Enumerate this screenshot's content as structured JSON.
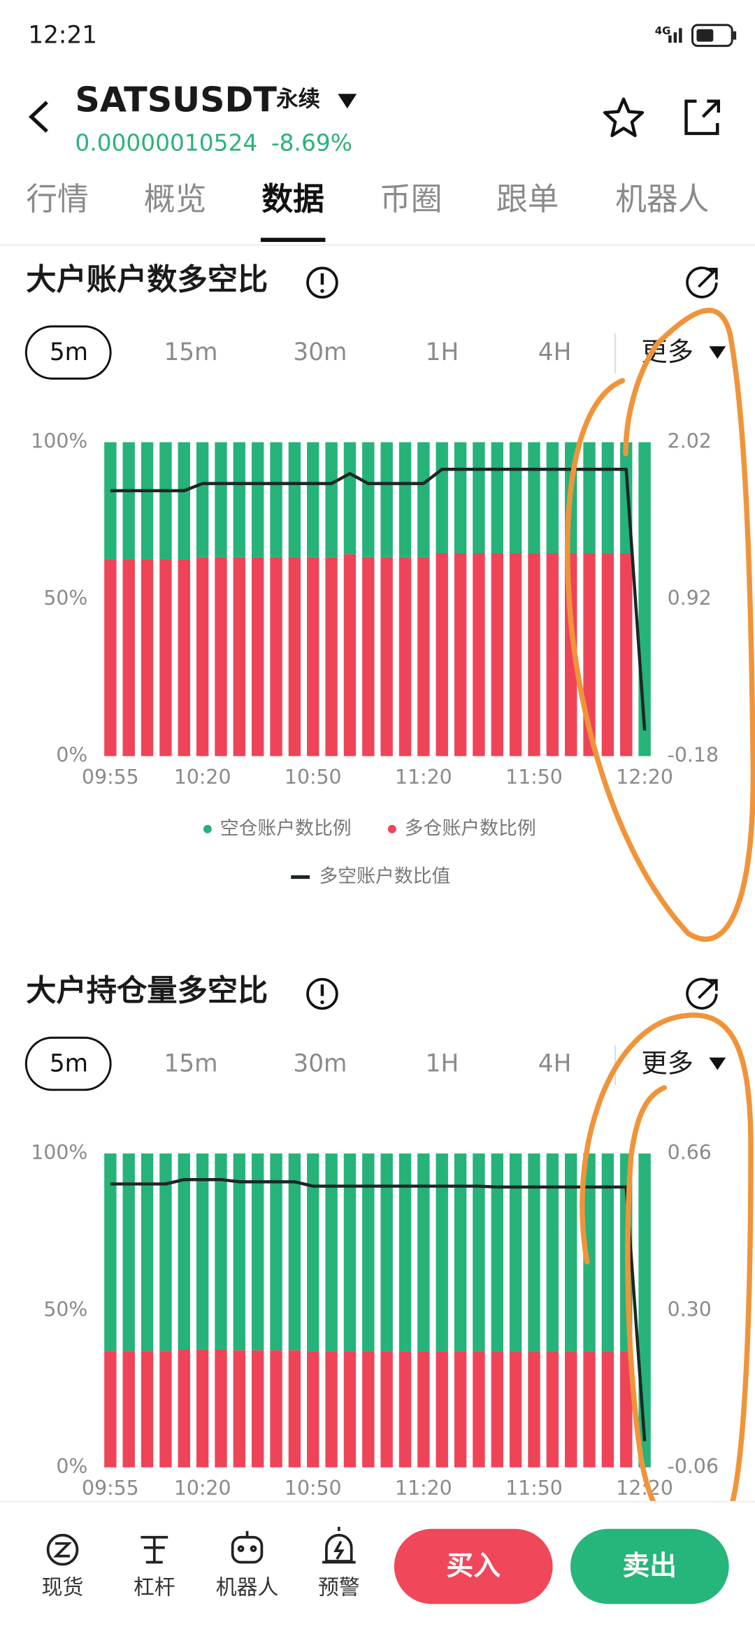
{
  "status": {
    "time": "12:21",
    "network": "4G"
  },
  "header": {
    "symbol": "SATSUSDT",
    "contract": "永续",
    "price": "0.00000010524",
    "change": "-8.69%"
  },
  "tabs": [
    "行情",
    "概览",
    "数据",
    "币圈",
    "跟单",
    "机器人"
  ],
  "sections": [
    {
      "intervals": [
        "5m",
        "15m",
        "30m",
        "1H",
        "4H"
      ],
      "more": "更多"
    },
    {
      "intervals": [
        "5m",
        "15m",
        "30m",
        "1H",
        "4H"
      ],
      "more": "更多"
    }
  ],
  "chart_data": [
    {
      "type": "combo",
      "title": "大户账户数多空比",
      "categories": [
        "09:55",
        null,
        null,
        null,
        null,
        "10:20",
        null,
        null,
        null,
        null,
        null,
        "10:50",
        null,
        null,
        null,
        null,
        null,
        "11:20",
        null,
        null,
        null,
        null,
        null,
        "11:50",
        null,
        null,
        null,
        null,
        null,
        "12:20"
      ],
      "ylim": [
        0,
        100
      ],
      "yticks": [
        {
          "value": 0,
          "label": "0%"
        },
        {
          "value": 50,
          "label": "50%"
        },
        {
          "value": 100,
          "label": "100%"
        }
      ],
      "y2lim": [
        -0.18,
        2.02
      ],
      "y2ticks": [
        -0.18,
        0.92,
        2.02
      ],
      "series": [
        {
          "name": "多仓账户数比例",
          "color": "#ef4458",
          "values": [
            62.7,
            62.7,
            62.7,
            62.7,
            62.7,
            63.4,
            63.4,
            63.4,
            63.4,
            63.4,
            63.4,
            63.4,
            63.4,
            64.3,
            63.4,
            63.4,
            63.4,
            63.4,
            64.7,
            64.7,
            64.7,
            64.7,
            64.7,
            64.7,
            64.7,
            64.7,
            64.7,
            64.7,
            64.7,
            0
          ]
        },
        {
          "name": "空仓账户数比例",
          "color": "#25b37a",
          "values": [
            37.3,
            37.3,
            37.3,
            37.3,
            37.3,
            36.6,
            36.6,
            36.6,
            36.6,
            36.6,
            36.6,
            36.6,
            36.6,
            35.7,
            36.6,
            36.6,
            36.6,
            36.6,
            35.3,
            35.3,
            35.3,
            35.3,
            35.3,
            35.3,
            35.3,
            35.3,
            35.3,
            35.3,
            35.3,
            100
          ]
        },
        {
          "name": "多空账户数比值",
          "color": "#1d2626",
          "axis": "y2",
          "values": [
            1.68,
            1.68,
            1.68,
            1.68,
            1.68,
            1.73,
            1.73,
            1.73,
            1.73,
            1.73,
            1.73,
            1.73,
            1.73,
            1.8,
            1.73,
            1.73,
            1.73,
            1.73,
            1.83,
            1.83,
            1.83,
            1.83,
            1.83,
            1.83,
            1.83,
            1.83,
            1.83,
            1.83,
            1.83,
            0
          ]
        }
      ]
    },
    {
      "type": "combo",
      "title": "大户持仓量多空比",
      "categories": [
        "09:55",
        null,
        null,
        null,
        null,
        "10:20",
        null,
        null,
        null,
        null,
        null,
        "10:50",
        null,
        null,
        null,
        null,
        null,
        "11:20",
        null,
        null,
        null,
        null,
        null,
        "11:50",
        null,
        null,
        null,
        null,
        null,
        "12:20"
      ],
      "ylim": [
        0,
        100
      ],
      "yticks": [
        {
          "value": 0,
          "label": "0%"
        },
        {
          "value": 50,
          "label": "50%"
        },
        {
          "value": 100,
          "label": "100%"
        }
      ],
      "y2lim": [
        -0.06,
        0.66
      ],
      "y2ticks": [
        -0.06,
        {
          "value": 0.3,
          "label": "0.30"
        },
        0.66
      ],
      "series": [
        {
          "color": "#ef4458",
          "values": [
            37.1,
            37.1,
            37.1,
            37.1,
            37.5,
            37.5,
            37.5,
            37.3,
            37.3,
            37.3,
            37.3,
            36.9,
            36.9,
            36.9,
            36.9,
            36.9,
            36.9,
            36.9,
            36.9,
            36.9,
            36.9,
            36.8,
            36.8,
            36.8,
            36.8,
            36.8,
            36.8,
            36.8,
            36.8,
            0
          ]
        },
        {
          "color": "#25b37a",
          "values": [
            62.9,
            62.9,
            62.9,
            62.9,
            62.5,
            62.5,
            62.5,
            62.7,
            62.7,
            62.7,
            62.7,
            63.1,
            63.1,
            63.1,
            63.1,
            63.1,
            63.1,
            63.1,
            63.1,
            63.1,
            63.1,
            63.2,
            63.2,
            63.2,
            63.2,
            63.2,
            63.2,
            63.2,
            63.2,
            100
          ]
        },
        {
          "color": "#1d2626",
          "axis": "y2",
          "values": [
            0.59,
            0.59,
            0.59,
            0.59,
            0.6,
            0.6,
            0.6,
            0.595,
            0.595,
            0.595,
            0.595,
            0.585,
            0.585,
            0.585,
            0.585,
            0.585,
            0.585,
            0.585,
            0.585,
            0.585,
            0.585,
            0.583,
            0.583,
            0.583,
            0.583,
            0.583,
            0.583,
            0.583,
            0.583,
            0
          ]
        }
      ]
    }
  ],
  "bottom_nav": [
    "现货",
    "杠杆",
    "机器人",
    "预警"
  ],
  "actions": {
    "buy": "买入",
    "sell": "卖出"
  }
}
